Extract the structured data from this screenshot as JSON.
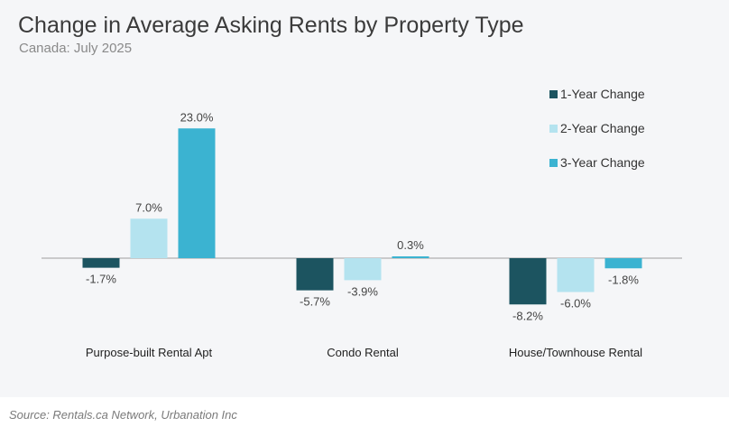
{
  "title": "Change in Average Asking Rents by Property Type",
  "subtitle": "Canada: July 2025",
  "source": "Source: Rentals.ca Network, Urbanation Inc",
  "colors": {
    "series": [
      "#1c5460",
      "#b4e3ef",
      "#3bb3d1"
    ],
    "background": "#f5f6f8",
    "axis": "#b0b0b0"
  },
  "chart_data": {
    "type": "bar",
    "categories": [
      "Purpose-built Rental Apt",
      "Condo Rental",
      "House/Townhouse Rental"
    ],
    "series": [
      {
        "name": "1-Year Change",
        "values": [
          -1.7,
          -5.7,
          -8.2
        ],
        "labels": [
          "-1.7%",
          "-5.7%",
          "-8.2%"
        ]
      },
      {
        "name": "2-Year Change",
        "values": [
          7.0,
          -3.9,
          -6.0
        ],
        "labels": [
          "7.0%",
          "-3.9%",
          "-6.0%"
        ]
      },
      {
        "name": "3-Year Change",
        "values": [
          23.0,
          0.3,
          -1.8
        ],
        "labels": [
          "23.0%",
          "0.3%",
          "-1.8%"
        ]
      }
    ],
    "unit": "%",
    "legend_position": "top-right",
    "grid": false
  }
}
